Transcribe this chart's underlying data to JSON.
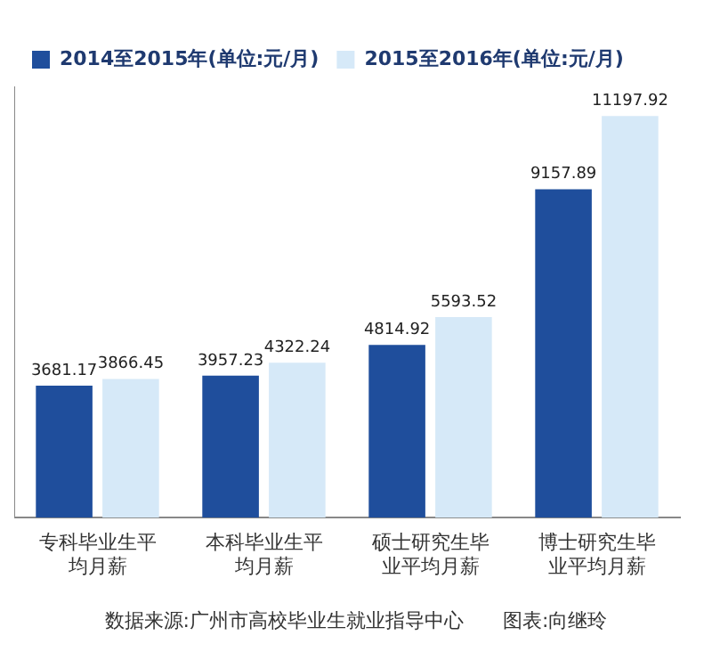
{
  "chart_data": {
    "type": "bar",
    "categories": [
      "专科毕业生平均月薪",
      "本科毕业生平均月薪",
      "硕士研究生毕业平均月薪",
      "博士研究生毕业平均月薪"
    ],
    "series": [
      {
        "name": "2014至2015年(单位:元/月)",
        "color": "#1f4e9c",
        "values": [
          3681.17,
          3957.23,
          4814.92,
          9157.89
        ]
      },
      {
        "name": "2015至2016年(单位:元/月)",
        "color": "#d6e9f8",
        "values": [
          3866.45,
          4322.24,
          5593.52,
          11197.92
        ]
      }
    ],
    "data_labels": true,
    "legend": "top left",
    "grid": false,
    "annotations": [
      "数据来源:广州市高校毕业生就业指导中心　　图表:向继玲"
    ]
  }
}
